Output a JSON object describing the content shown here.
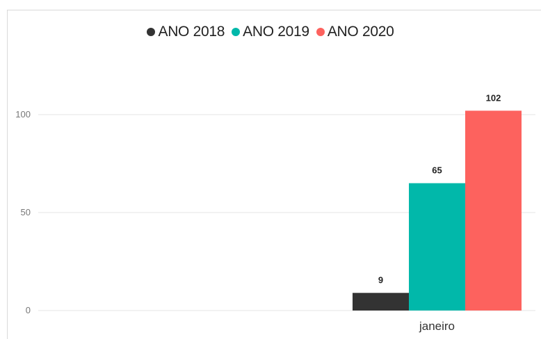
{
  "chart_data": {
    "type": "bar",
    "categories": [
      "janeiro"
    ],
    "series": [
      {
        "name": "ANO 2018",
        "values": [
          9
        ],
        "color": "#333333"
      },
      {
        "name": "ANO 2019",
        "values": [
          65
        ],
        "color": "#01B8AA"
      },
      {
        "name": "ANO 2020",
        "values": [
          102
        ],
        "color": "#FD625E"
      }
    ],
    "yticks": [
      "0",
      "50",
      "100"
    ],
    "ylim": [
      0,
      100
    ],
    "grid": true,
    "legend_position": "top-center",
    "data_labels": [
      "9",
      "65",
      "102"
    ]
  }
}
